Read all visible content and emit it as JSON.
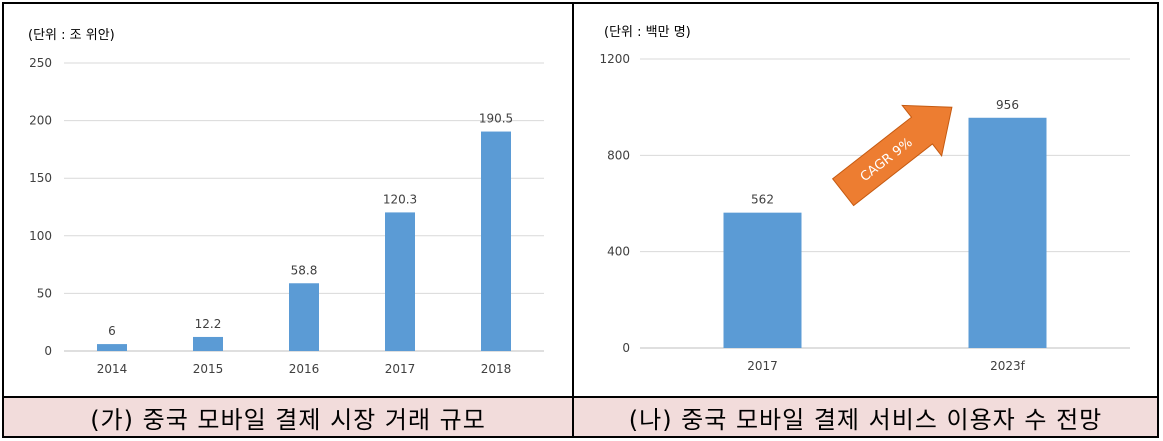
{
  "chart_data": [
    {
      "type": "bar",
      "unit_label": "(단위 : 조 위안)",
      "categories": [
        "2014",
        "2015",
        "2016",
        "2017",
        "2018"
      ],
      "values": [
        6,
        12.2,
        58.8,
        120.3,
        190.5
      ],
      "data_labels": [
        "6",
        "12.2",
        "58.8",
        "120.3",
        "190.5"
      ],
      "ylim": [
        0,
        250
      ],
      "yticks": [
        "0",
        "50",
        "100",
        "150",
        "200",
        "250"
      ],
      "bar_color": "#5b9bd5",
      "caption": "(가) 중국 모바일 결제 시장 거래 규모"
    },
    {
      "type": "bar",
      "unit_label": "(단위 : 백만 명)",
      "categories": [
        "2017",
        "2023f"
      ],
      "values": [
        562,
        956
      ],
      "data_labels": [
        "562",
        "956"
      ],
      "ylim": [
        0,
        1200
      ],
      "yticks": [
        "0",
        "400",
        "800",
        "1200"
      ],
      "bar_color": "#5b9bd5",
      "annotation": "CAGR 9%",
      "arrow_color": "#ed7d31",
      "caption": "(나) 중국 모바일 결제 서비스 이용자 수 전망"
    }
  ],
  "colors": {
    "caption_bg": "#f2dcdb",
    "grid": "#d9d9d9"
  }
}
